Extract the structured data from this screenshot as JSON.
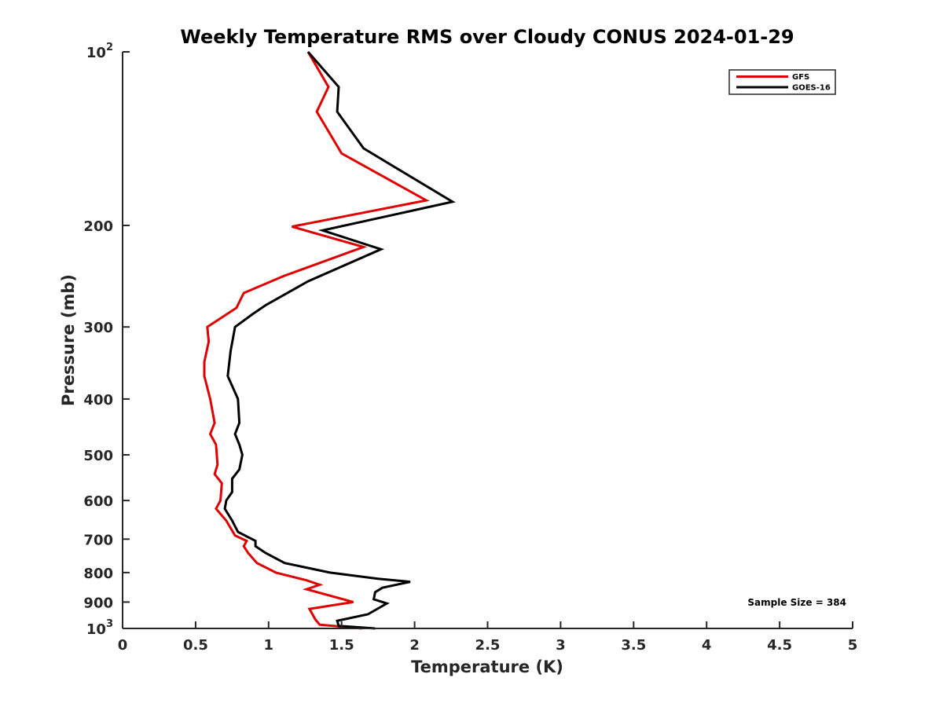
{
  "chart_data": {
    "type": "line",
    "title": "Weekly Temperature RMS over Cloudy CONUS 2024-01-29",
    "xlabel": "Temperature (K)",
    "ylabel": "Pressure (mb)",
    "xlim": [
      0,
      5
    ],
    "ylim": [
      100,
      1000
    ],
    "y_scale": "log",
    "y_reversed": true,
    "grid": false,
    "legend_position": "top-right",
    "x_ticks": [
      0,
      0.5,
      1,
      1.5,
      2,
      2.5,
      3,
      3.5,
      4,
      4.5,
      5
    ],
    "x_tick_labels": [
      "0",
      "0.5",
      "1",
      "1.5",
      "2",
      "2.5",
      "3",
      "3.5",
      "4",
      "4.5",
      "5"
    ],
    "y_ticks": [
      100,
      200,
      300,
      400,
      500,
      600,
      700,
      800,
      900,
      1000
    ],
    "y_tick_labels": [
      {
        "base": "10",
        "exp": "2"
      },
      {
        "base": "200",
        "exp": ""
      },
      {
        "base": "300",
        "exp": ""
      },
      {
        "base": "400",
        "exp": ""
      },
      {
        "base": "500",
        "exp": ""
      },
      {
        "base": "600",
        "exp": ""
      },
      {
        "base": "700",
        "exp": ""
      },
      {
        "base": "800",
        "exp": ""
      },
      {
        "base": "900",
        "exp": ""
      },
      {
        "base": "10",
        "exp": "3"
      }
    ],
    "annotation": "Sample Size = 384",
    "series": [
      {
        "name": "GFS",
        "color": "#e00000",
        "points": [
          [
            1.27,
            100
          ],
          [
            1.41,
            115
          ],
          [
            1.33,
            127
          ],
          [
            1.5,
            150
          ],
          [
            2.08,
            181
          ],
          [
            1.16,
            201
          ],
          [
            1.65,
            218
          ],
          [
            1.1,
            245
          ],
          [
            0.83,
            262
          ],
          [
            0.78,
            278
          ],
          [
            0.58,
            300
          ],
          [
            0.59,
            318
          ],
          [
            0.56,
            345
          ],
          [
            0.56,
            365
          ],
          [
            0.6,
            400
          ],
          [
            0.63,
            440
          ],
          [
            0.6,
            460
          ],
          [
            0.64,
            480
          ],
          [
            0.65,
            520
          ],
          [
            0.63,
            540
          ],
          [
            0.68,
            560
          ],
          [
            0.67,
            600
          ],
          [
            0.64,
            620
          ],
          [
            0.71,
            650
          ],
          [
            0.77,
            690
          ],
          [
            0.85,
            705
          ],
          [
            0.83,
            720
          ],
          [
            0.86,
            740
          ],
          [
            0.92,
            770
          ],
          [
            1.05,
            800
          ],
          [
            1.26,
            825
          ],
          [
            1.35,
            840
          ],
          [
            1.26,
            855
          ],
          [
            1.58,
            900
          ],
          [
            1.28,
            925
          ],
          [
            1.32,
            965
          ],
          [
            1.35,
            985
          ],
          [
            1.64,
            1000
          ]
        ]
      },
      {
        "name": "GOES-16",
        "color": "#000000",
        "points": [
          [
            1.27,
            100
          ],
          [
            1.48,
            115
          ],
          [
            1.47,
            127
          ],
          [
            1.65,
            147
          ],
          [
            2.26,
            182
          ],
          [
            1.37,
            204
          ],
          [
            1.77,
            220
          ],
          [
            1.27,
            250
          ],
          [
            0.98,
            275
          ],
          [
            0.89,
            285
          ],
          [
            0.77,
            300
          ],
          [
            0.74,
            330
          ],
          [
            0.72,
            365
          ],
          [
            0.79,
            400
          ],
          [
            0.8,
            440
          ],
          [
            0.77,
            460
          ],
          [
            0.8,
            480
          ],
          [
            0.82,
            500
          ],
          [
            0.8,
            530
          ],
          [
            0.75,
            550
          ],
          [
            0.75,
            580
          ],
          [
            0.71,
            600
          ],
          [
            0.7,
            620
          ],
          [
            0.75,
            650
          ],
          [
            0.79,
            680
          ],
          [
            0.91,
            705
          ],
          [
            0.91,
            720
          ],
          [
            0.98,
            740
          ],
          [
            1.11,
            770
          ],
          [
            1.42,
            800
          ],
          [
            1.75,
            820
          ],
          [
            1.97,
            830
          ],
          [
            1.78,
            850
          ],
          [
            1.73,
            865
          ],
          [
            1.72,
            890
          ],
          [
            1.81,
            905
          ],
          [
            1.68,
            945
          ],
          [
            1.47,
            970
          ],
          [
            1.48,
            990
          ],
          [
            1.73,
            1000
          ]
        ]
      }
    ]
  }
}
